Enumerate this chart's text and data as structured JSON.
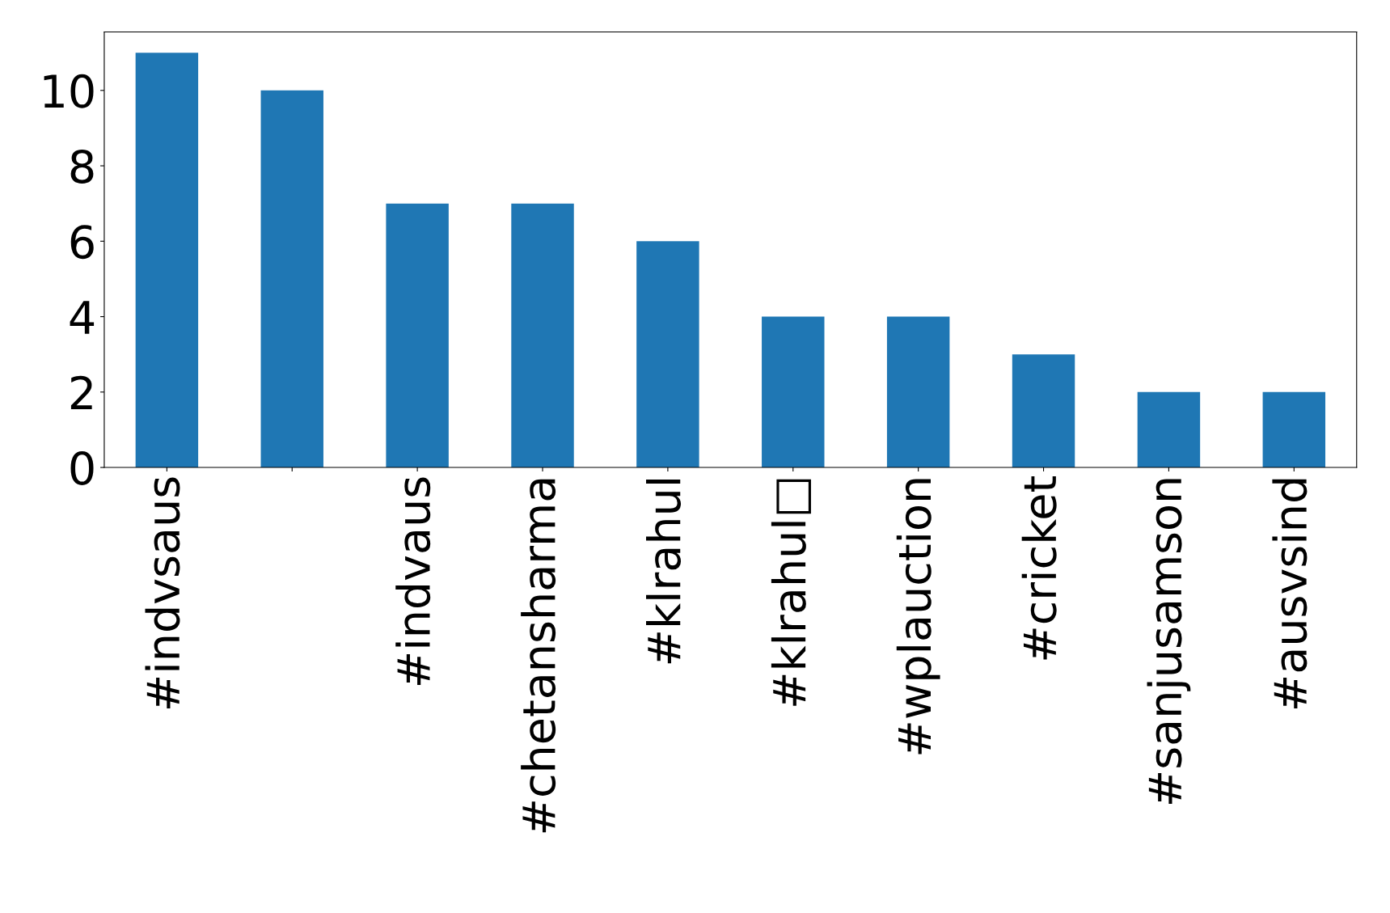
{
  "chart_data": {
    "type": "bar",
    "categories": [
      "#indvsaus",
      null,
      "#indvaus",
      "#chetansharma",
      "#klrahul",
      "#klrahul□",
      "#wplauction",
      "#cricket",
      "#sanjusamson",
      "#ausvsind"
    ],
    "values": [
      11,
      10,
      7,
      7,
      6,
      4,
      4,
      3,
      2,
      2
    ],
    "color": "#1f77b4",
    "ylim": [
      0,
      11.55
    ],
    "yticks": [
      0,
      2,
      4,
      6,
      8,
      10
    ],
    "grid": false,
    "legend": false
  }
}
